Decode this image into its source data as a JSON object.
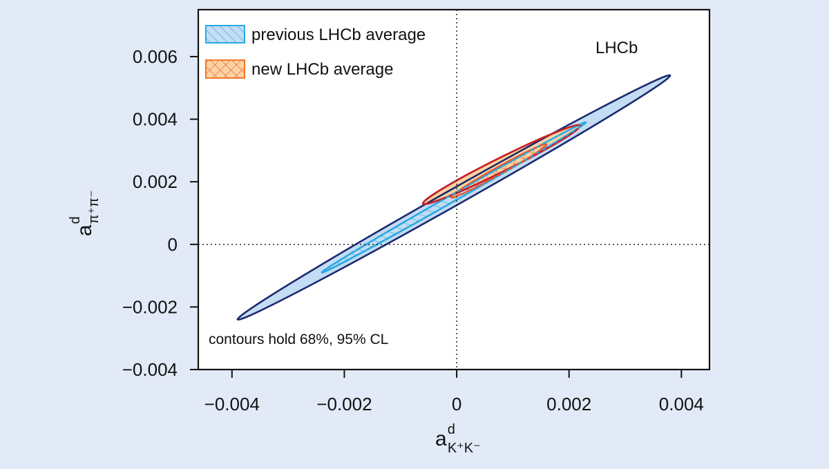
{
  "chart_data": {
    "type": "contour",
    "xlim": [
      -0.0046,
      0.0045
    ],
    "ylim": [
      -0.004,
      0.0075
    ],
    "x_ticks": [
      -0.004,
      -0.002,
      0,
      0.002,
      0.004
    ],
    "x_tick_labels": [
      "−0.004",
      "−0.002",
      "0",
      "0.002",
      "0.004"
    ],
    "y_ticks": [
      -0.004,
      -0.002,
      0,
      0.002,
      0.004,
      0.006
    ],
    "y_tick_labels": [
      "−0.004",
      "−0.002",
      "0",
      "0.002",
      "0.004",
      "0.006"
    ],
    "xlabel": {
      "base": "a",
      "sup": "d",
      "sub": "K⁺K⁻"
    },
    "ylabel": {
      "base": "a",
      "sup": "d",
      "sub": "π⁺π⁻"
    },
    "brand": "LHCb",
    "annotation": "contours hold 68%, 95% CL",
    "reference_lines": {
      "x": 0,
      "y": 0
    },
    "legend": [
      {
        "label": "previous LHCb average",
        "color": "#29a9e0",
        "pattern": "hatch"
      },
      {
        "label": "new LHCb average",
        "color": "#f07a2a",
        "pattern": "crosshatch"
      }
    ],
    "series": [
      {
        "name": "previous LHCb average",
        "center": [
          -5e-05,
          0.0015
        ],
        "contour_95": {
          "endpoints": [
            [
              -0.0039,
              -0.0024
            ],
            [
              0.0038,
              0.0054
            ]
          ],
          "half_width": 0.00026,
          "fill": "#c4dcf4",
          "stroke": "#1a2a6e"
        },
        "contour_68": {
          "endpoints": [
            [
              -0.0024,
              -0.0009
            ],
            [
              0.0023,
              0.0039
            ]
          ],
          "half_width": 0.00011,
          "fill": "none",
          "stroke": "#29a9e0"
        }
      },
      {
        "name": "new LHCb average",
        "center": [
          0.00077,
          0.0025
        ],
        "contour_95": {
          "endpoints": [
            [
              -0.0006,
              0.0013
            ],
            [
              0.0022,
              0.0038
            ]
          ],
          "half_width": 0.00022,
          "fill": "#fbd3a3",
          "stroke": "#c8202a"
        },
        "contour_68": {
          "endpoints": [
            [
              -0.0001,
              0.0015
            ],
            [
              0.0016,
              0.0032
            ]
          ],
          "half_width": 0.00012,
          "fill": "none",
          "stroke": "#e8552a"
        }
      }
    ]
  }
}
